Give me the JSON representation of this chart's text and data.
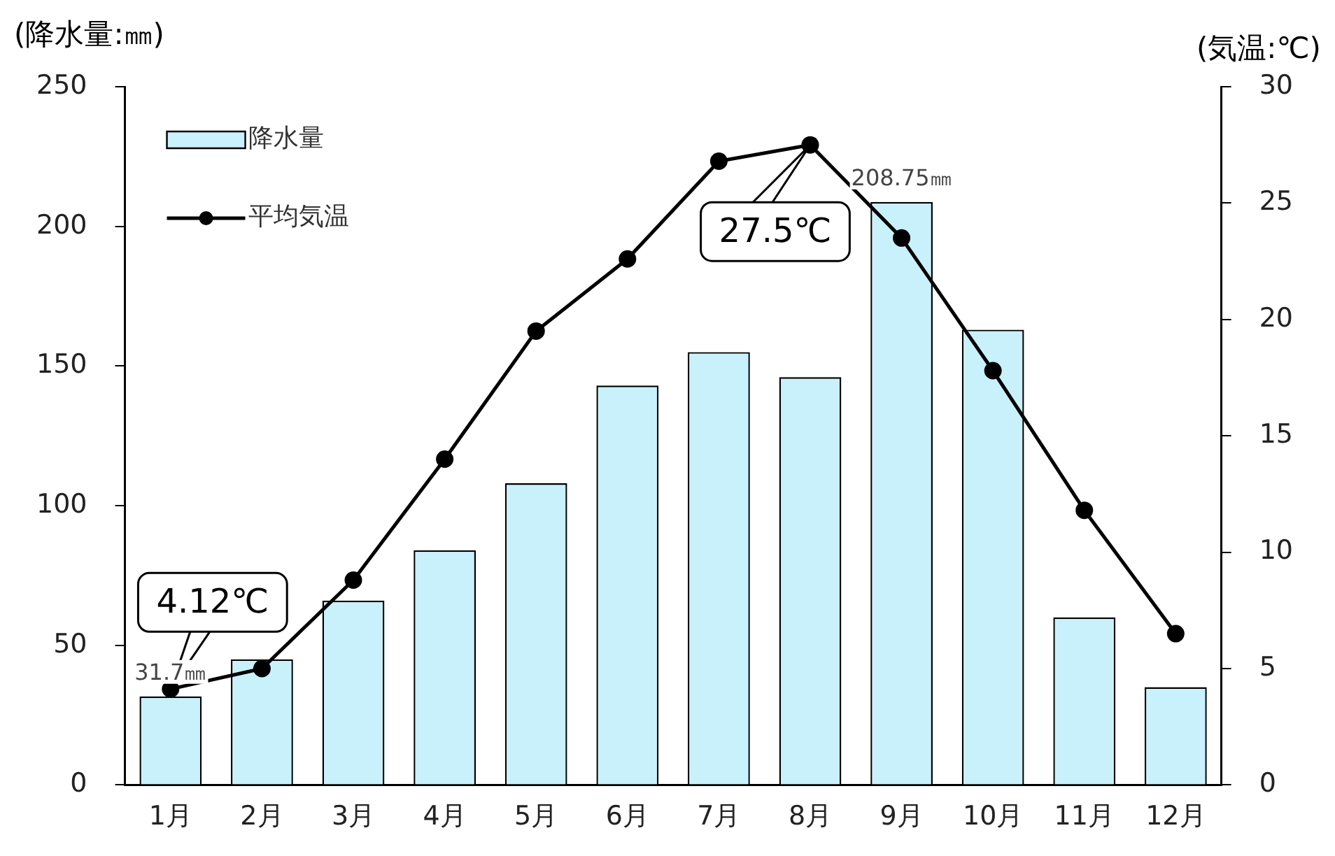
{
  "chart_data": {
    "type": "bar",
    "ylabel": "(降水量:㎜)",
    "y2label": "(気温:℃)",
    "categories": [
      "1月",
      "2月",
      "3月",
      "4月",
      "5月",
      "6月",
      "7月",
      "8月",
      "9月",
      "10月",
      "11月",
      "12月"
    ],
    "series": [
      {
        "name": "降水量",
        "color": "#c9f1fb",
        "values": [
          31.7,
          45,
          66,
          84,
          108,
          143,
          155,
          146,
          208.75,
          163,
          60,
          35
        ],
        "value_labels": [
          "31.7㎜",
          null,
          null,
          null,
          null,
          null,
          null,
          null,
          "208.75㎜",
          null,
          null,
          null
        ]
      },
      {
        "name": "平均気温",
        "type": "line",
        "axis": "y2",
        "color": "#000000",
        "values": [
          4.12,
          5.0,
          8.8,
          14.0,
          19.5,
          22.6,
          26.8,
          27.5,
          23.5,
          17.8,
          11.8,
          6.5
        ],
        "value_labels": [
          "4.12℃",
          null,
          null,
          null,
          null,
          null,
          null,
          "27.5℃",
          null,
          null,
          null,
          null
        ]
      }
    ],
    "ylim": [
      0,
      250
    ],
    "yticks": [
      0,
      50,
      100,
      150,
      200,
      250
    ],
    "y2lim": [
      0,
      30
    ],
    "y2ticks": [
      0,
      5,
      10,
      15,
      20,
      25,
      30
    ],
    "legend": "top left",
    "marker": "circle"
  }
}
